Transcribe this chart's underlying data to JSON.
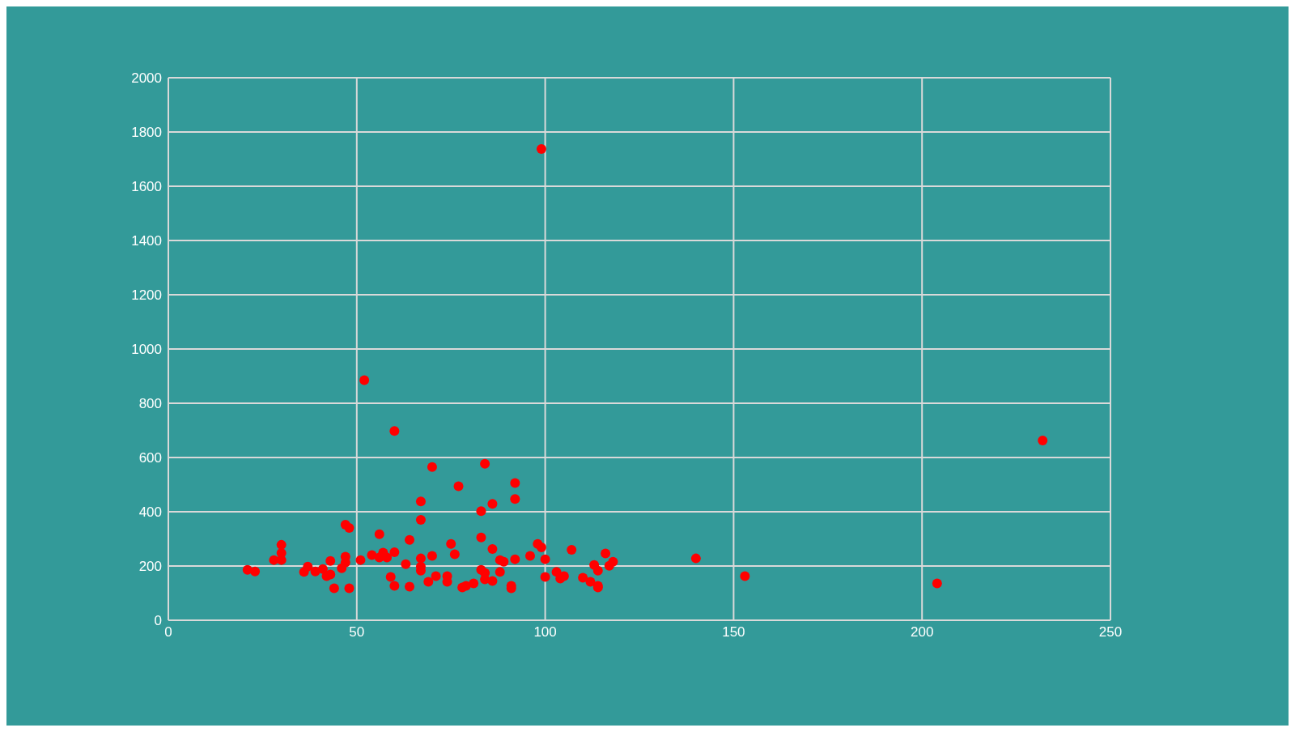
{
  "chart_data": {
    "type": "scatter",
    "color": "#ff0000",
    "marker": "circle",
    "grid": true,
    "xlim": [
      0,
      250
    ],
    "xticks": [
      0,
      50,
      100,
      150,
      200,
      250
    ],
    "ylim": [
      0,
      2000
    ],
    "yticks": [
      0,
      200,
      400,
      600,
      800,
      1000,
      1200,
      1400,
      1600,
      1800,
      2000
    ],
    "x": [
      21,
      23,
      28,
      30,
      30,
      30,
      36,
      37,
      39,
      41,
      42,
      43,
      43,
      44,
      46,
      47,
      48,
      47,
      47,
      48,
      51,
      52,
      54,
      56,
      56,
      57,
      58,
      59,
      60,
      60,
      60,
      63,
      64,
      64,
      67,
      67,
      67,
      67,
      67,
      69,
      70,
      70,
      71,
      74,
      74,
      75,
      76,
      77,
      78,
      79,
      81,
      83,
      83,
      83,
      84,
      84,
      84,
      86,
      86,
      86,
      88,
      88,
      89,
      91,
      91,
      92,
      92,
      92,
      96,
      98,
      99,
      99,
      100,
      100,
      103,
      104,
      105,
      107,
      110,
      112,
      113,
      114,
      114,
      114,
      116,
      117,
      118,
      140,
      153,
      204,
      232
    ],
    "values": [
      186,
      180,
      222,
      278,
      248,
      222,
      178,
      198,
      180,
      189,
      163,
      219,
      169,
      118,
      192,
      352,
      340,
      234,
      213,
      118,
      222,
      885,
      240,
      317,
      231,
      249,
      231,
      160,
      698,
      251,
      127,
      207,
      296,
      124,
      438,
      370,
      228,
      198,
      183,
      142,
      565,
      237,
      163,
      163,
      142,
      281,
      243,
      494,
      121,
      127,
      136,
      402,
      305,
      186,
      577,
      175,
      151,
      429,
      263,
      145,
      222,
      178,
      216,
      127,
      118,
      506,
      447,
      225,
      237,
      281,
      269,
      1737,
      225,
      160,
      178,
      154,
      163,
      260,
      157,
      142,
      204,
      183,
      127,
      121,
      246,
      201,
      216,
      228,
      163,
      136,
      663
    ]
  }
}
